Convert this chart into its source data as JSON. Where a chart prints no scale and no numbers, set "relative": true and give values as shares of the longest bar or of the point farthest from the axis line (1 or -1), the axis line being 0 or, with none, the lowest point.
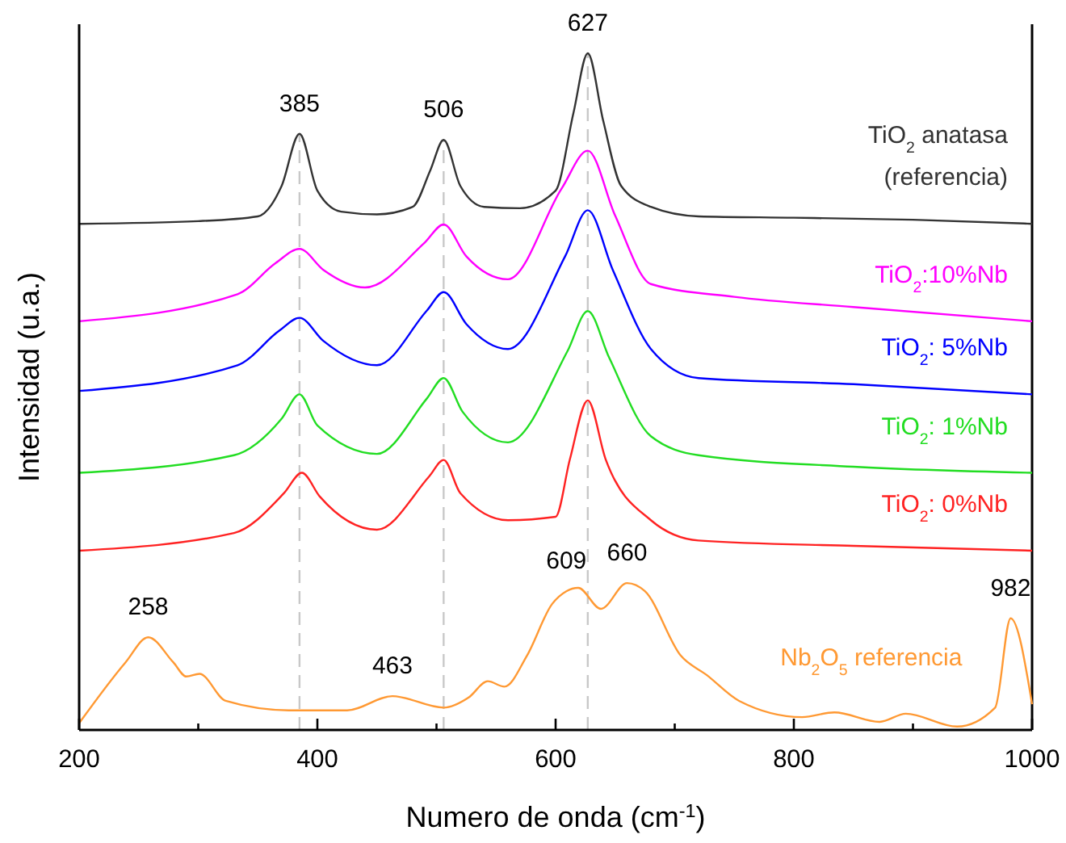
{
  "chart_data": {
    "type": "line",
    "relative": true,
    "xlabel": "Numero de onda (cm$^{-1}$)",
    "ylabel": "Intensidad (u.a.)",
    "xlim": [
      200,
      1000
    ],
    "xticks": [
      200,
      {
        "value": 300,
        "label": null
      },
      400,
      {
        "value": 500,
        "label": null
      },
      600,
      {
        "value": 700,
        "label": null
      },
      800,
      {
        "value": 900,
        "label": null
      },
      1000
    ],
    "tick_labels": "x",
    "grid": false,
    "marker": "none",
    "line_style": "solid",
    "series": [
      {
        "name": "TiO$_{2}$ anatasa (referencia)",
        "color": "#333333",
        "x": [
          200,
          300,
          350,
          370,
          385,
          400,
          420,
          450,
          480,
          495,
          506,
          520,
          540,
          570,
          600,
          615,
          627,
          640,
          655,
          680,
          720,
          800,
          900,
          1000
        ],
        "values": [
          0.748,
          0.752,
          0.759,
          0.804,
          0.881,
          0.797,
          0.766,
          0.762,
          0.773,
          0.828,
          0.872,
          0.804,
          0.773,
          0.771,
          0.797,
          0.912,
          1.0,
          0.9,
          0.804,
          0.773,
          0.759,
          0.757,
          0.754,
          0.748
        ]
      },
      {
        "name": "TiO$_{2}$:10%Nb",
        "color": "#ff00ff",
        "x": [
          200,
          333,
          365,
          385,
          405,
          440,
          490,
          506,
          525,
          560,
          605,
          627,
          650,
          680,
          750,
          850,
          1000
        ],
        "values": [
          0.604,
          0.644,
          0.69,
          0.711,
          0.68,
          0.654,
          0.72,
          0.747,
          0.7,
          0.666,
          0.8,
          0.856,
          0.76,
          0.659,
          0.64,
          0.625,
          0.604
        ]
      },
      {
        "name": "TiO$_{2}$: 5%Nb",
        "color": "#0000ff",
        "x": [
          200,
          333,
          368,
          385,
          405,
          450,
          492,
          506,
          525,
          560,
          608,
          627,
          648,
          680,
          720,
          850,
          1000
        ],
        "values": [
          0.501,
          0.539,
          0.59,
          0.609,
          0.575,
          0.539,
          0.62,
          0.647,
          0.6,
          0.563,
          0.7,
          0.768,
          0.68,
          0.563,
          0.52,
          0.511,
          0.496
        ]
      },
      {
        "name": "TiO$_{2}$: 1%Nb",
        "color": "#22dd22",
        "x": [
          200,
          330,
          370,
          385,
          400,
          450,
          492,
          506,
          522,
          560,
          610,
          627,
          645,
          680,
          720,
          850,
          1000
        ],
        "values": [
          0.38,
          0.406,
          0.46,
          0.496,
          0.45,
          0.408,
          0.49,
          0.52,
          0.47,
          0.425,
          0.56,
          0.619,
          0.55,
          0.434,
          0.406,
          0.389,
          0.38
        ]
      },
      {
        "name": "TiO$_{2}$: 0%Nb",
        "color": "#ff2222",
        "x": [
          200,
          330,
          372,
          387,
          402,
          450,
          494,
          506,
          520,
          560,
          600,
          612,
          627,
          642,
          680,
          720,
          850,
          1000
        ],
        "values": [
          0.265,
          0.291,
          0.35,
          0.38,
          0.345,
          0.296,
          0.375,
          0.399,
          0.35,
          0.31,
          0.315,
          0.4,
          0.487,
          0.4,
          0.31,
          0.28,
          0.272,
          0.265
        ]
      },
      {
        "name": "Nb$_{2}$O$_{5}$ referencia",
        "color": "#ff9933",
        "x": [
          200,
          239,
          258,
          279,
          290,
          301,
          323,
          376,
          425,
          463,
          506,
          527,
          543,
          557,
          576,
          597,
          609,
          619,
          638,
          660,
          675,
          705,
          727,
          754,
          807,
          834,
          872,
          894,
          937,
          969,
          982,
          1000
        ],
        "values": [
          0.01,
          0.1,
          0.137,
          0.1,
          0.079,
          0.083,
          0.043,
          0.029,
          0.029,
          0.05,
          0.033,
          0.048,
          0.072,
          0.064,
          0.11,
          0.186,
          0.205,
          0.21,
          0.179,
          0.217,
          0.205,
          0.11,
          0.081,
          0.043,
          0.019,
          0.026,
          0.012,
          0.024,
          0.005,
          0.033,
          0.165,
          0.038
        ]
      }
    ],
    "ref_lines": [
      {
        "axis": "x",
        "value": 385,
        "color": "#c8c8c8",
        "line_style": "dashed"
      },
      {
        "axis": "x",
        "value": 506,
        "color": "#c8c8c8",
        "line_style": "dashed"
      },
      {
        "axis": "x",
        "value": 627,
        "color": "#c8c8c8",
        "line_style": "dashed"
      }
    ],
    "annotations": [
      {
        "text": "385",
        "x": 385,
        "y": 0.881
      },
      {
        "text": "506",
        "x": 506,
        "y": 0.872
      },
      {
        "text": "627",
        "x": 627,
        "y": 1.0
      },
      {
        "text": "258",
        "x": 258,
        "y": 0.137
      },
      {
        "text": "463",
        "x": 463,
        "y": 0.05
      },
      {
        "text": "609",
        "x": 609,
        "y": 0.205
      },
      {
        "text": "660",
        "x": 660,
        "y": 0.217
      },
      {
        "text": "982",
        "x": 982,
        "y": 0.165
      }
    ]
  }
}
